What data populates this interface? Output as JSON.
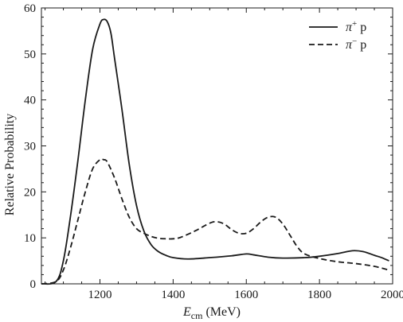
{
  "chart_data": {
    "type": "line",
    "title": "",
    "xlabel": "E",
    "xlabel_sub": "cm",
    "xlabel_unit": " (MeV)",
    "ylabel": "Relative Probability",
    "xlim": [
      1040,
      2000
    ],
    "ylim": [
      0,
      60
    ],
    "x_ticks": [
      1200,
      1400,
      1600,
      1800,
      2000
    ],
    "y_ticks": [
      0,
      10,
      20,
      30,
      40,
      50,
      60
    ],
    "grid": false,
    "legend_position": "top-right",
    "series": [
      {
        "name": "π⁺p",
        "legend_parts": [
          "π",
          "+",
          " p"
        ],
        "style": "solid",
        "color": "#1a1a1a",
        "x": [
          1040,
          1080,
          1100,
          1120,
          1140,
          1160,
          1180,
          1200,
          1210,
          1220,
          1230,
          1240,
          1260,
          1280,
          1300,
          1320,
          1340,
          1360,
          1380,
          1400,
          1440,
          1500,
          1560,
          1600,
          1620,
          1660,
          1700,
          1760,
          1800,
          1850,
          1890,
          1920,
          1950,
          1970,
          1990
        ],
        "y": [
          0,
          0.5,
          5,
          15,
          27,
          40,
          51,
          56.5,
          57.5,
          57,
          54.5,
          49,
          38,
          26,
          17,
          11.5,
          8.5,
          7,
          6.2,
          5.7,
          5.4,
          5.7,
          6.1,
          6.5,
          6.3,
          5.8,
          5.6,
          5.7,
          6.0,
          6.6,
          7.2,
          7.0,
          6.2,
          5.7,
          5.0
        ]
      },
      {
        "name": "π⁻p",
        "legend_parts": [
          "π",
          "−",
          " p"
        ],
        "style": "dashed",
        "color": "#1a1a1a",
        "x": [
          1040,
          1080,
          1100,
          1120,
          1140,
          1160,
          1180,
          1200,
          1210,
          1220,
          1240,
          1260,
          1280,
          1300,
          1320,
          1340,
          1360,
          1380,
          1400,
          1420,
          1460,
          1500,
          1520,
          1540,
          1560,
          1580,
          1600,
          1620,
          1640,
          1660,
          1680,
          1700,
          1720,
          1740,
          1760,
          1800,
          1850,
          1900,
          1950,
          1990
        ],
        "y": [
          0,
          0.5,
          3,
          8,
          14,
          20,
          25,
          27,
          27,
          26.5,
          23,
          18.5,
          14.5,
          12,
          11,
          10.3,
          9.9,
          9.8,
          9.8,
          10.1,
          11.5,
          13.2,
          13.5,
          13,
          11.8,
          11,
          11,
          12,
          13.5,
          14.5,
          14.5,
          13,
          10.5,
          8,
          6.5,
          5.5,
          4.8,
          4.4,
          3.8,
          3.0
        ]
      }
    ]
  }
}
